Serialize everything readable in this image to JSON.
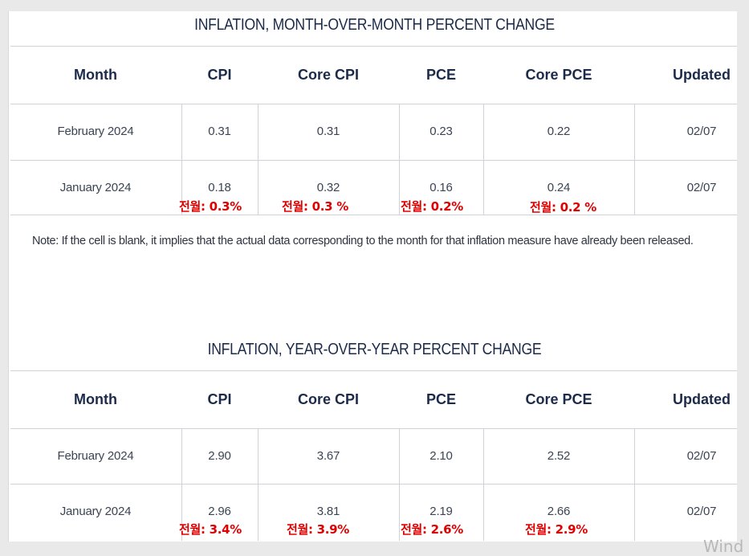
{
  "mom": {
    "title": "INFLATION, MONTH-OVER-MONTH PERCENT CHANGE",
    "headers": [
      "Month",
      "CPI",
      "Core CPI",
      "PCE",
      "Core PCE",
      "Updated"
    ],
    "rows": [
      {
        "month": "February 2024",
        "cpi": "0.31",
        "core_cpi": "0.31",
        "pce": "0.23",
        "core_pce": "0.22",
        "updated": "02/07"
      },
      {
        "month": "January 2024",
        "cpi": "0.18",
        "core_cpi": "0.32",
        "pce": "0.16",
        "core_pce": "0.24",
        "updated": "02/07"
      }
    ],
    "annotations": {
      "cpi": "전월: 0.3%",
      "core_cpi": "전월: 0.3 %",
      "pce": "전월: 0.2%",
      "core_pce": "전월: 0.2 %"
    }
  },
  "footnote": "Note: If the cell is blank, it implies that the actual data corresponding to the month for that inflation measure have already been released.",
  "yoy": {
    "title": "INFLATION, YEAR-OVER-YEAR PERCENT CHANGE",
    "headers": [
      "Month",
      "CPI",
      "Core CPI",
      "PCE",
      "Core PCE",
      "Updated"
    ],
    "rows": [
      {
        "month": "February 2024",
        "cpi": "2.90",
        "core_cpi": "3.67",
        "pce": "2.10",
        "core_pce": "2.52",
        "updated": "02/07"
      },
      {
        "month": "January 2024",
        "cpi": "2.96",
        "core_cpi": "3.81",
        "pce": "2.19",
        "core_pce": "2.66",
        "updated": "02/07"
      }
    ],
    "annotations": {
      "cpi": "전월: 3.4%",
      "core_cpi": "전월: 3.9%",
      "pce": "전월: 2.6%",
      "core_pce": "전월: 2.9%"
    }
  },
  "watermark": "Wind",
  "colors": {
    "header_text": "#1c2b4a",
    "annotation": "#e00000",
    "grid": "#cfd3d8"
  }
}
